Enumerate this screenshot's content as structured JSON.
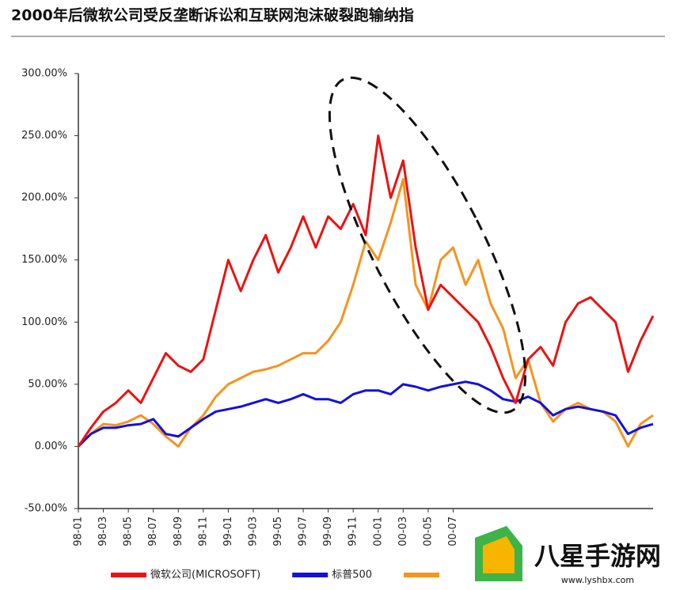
{
  "chart_data": {
    "type": "line",
    "title": "2000年后微软公司受反垄断诉讼和互联网泡沫破裂跑输纳指",
    "categories": [
      "98-01",
      null,
      "98-03",
      null,
      "98-05",
      null,
      "98-07",
      null,
      "98-09",
      null,
      "98-11",
      null,
      "99-01",
      null,
      "99-03",
      null,
      "99-05",
      null,
      "99-07",
      null,
      "99-09",
      null,
      "99-11",
      null,
      "00-01",
      null,
      "00-03",
      null,
      "00-05",
      null,
      "00-07",
      null,
      null,
      null,
      null,
      null,
      null,
      null,
      null,
      null,
      null,
      null,
      null,
      null,
      null,
      null,
      null
    ],
    "series": [
      {
        "name": "微软公司(MICROSOFT)",
        "color": "#ee1111",
        "values": [
          0,
          15,
          28,
          35,
          45,
          35,
          55,
          75,
          65,
          60,
          70,
          110,
          150,
          125,
          150,
          170,
          140,
          160,
          185,
          160,
          185,
          175,
          195,
          170,
          250,
          200,
          230,
          160,
          110,
          130,
          120,
          110,
          100,
          80,
          55,
          35,
          70,
          80,
          65,
          100,
          115,
          120,
          110,
          100,
          60,
          85,
          105
        ]
      },
      {
        "name": "标普500",
        "color": "#1111dd",
        "values": [
          0,
          10,
          15,
          15,
          17,
          18,
          22,
          10,
          8,
          15,
          22,
          28,
          30,
          32,
          35,
          38,
          35,
          38,
          42,
          38,
          38,
          35,
          42,
          45,
          45,
          42,
          50,
          48,
          45,
          48,
          50,
          52,
          50,
          45,
          38,
          36,
          40,
          35,
          25,
          30,
          32,
          30,
          28,
          25,
          10,
          15,
          18
        ]
      },
      {
        "color": "#f7931e",
        "values": [
          0,
          10,
          18,
          17,
          20,
          25,
          18,
          8,
          0,
          15,
          25,
          40,
          50,
          55,
          60,
          62,
          65,
          70,
          75,
          75,
          85,
          100,
          130,
          165,
          150,
          180,
          215,
          130,
          110,
          150,
          160,
          130,
          150,
          115,
          95,
          55,
          70,
          35,
          20,
          30,
          35,
          30,
          28,
          20,
          0,
          18,
          25
        ]
      }
    ],
    "ylim": [
      -50,
      300
    ],
    "yticks": [
      {
        "value": -50,
        "label": "-50.00%"
      },
      {
        "value": 0,
        "label": "0.00%"
      },
      {
        "value": 50,
        "label": "50.00%"
      },
      {
        "value": 100,
        "label": "100.00%"
      },
      {
        "value": 150,
        "label": "150.00%"
      },
      {
        "value": 200,
        "label": "200.00%"
      },
      {
        "value": 250,
        "label": "250.00%"
      },
      {
        "value": 300,
        "label": "300.00%"
      }
    ]
  },
  "watermark": {
    "name": "八星手游网",
    "url": "www.lyshbx.com"
  }
}
